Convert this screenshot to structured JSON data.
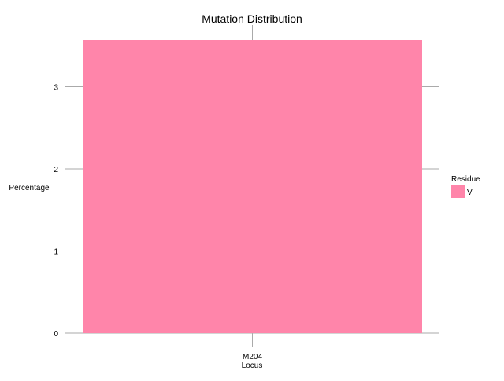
{
  "chart_data": {
    "type": "bar",
    "title": "Mutation Distribution",
    "xlabel": "Locus",
    "ylabel": "Percentage",
    "categories": [
      "M204"
    ],
    "series": [
      {
        "name": "V",
        "values": [
          3.57
        ],
        "color": "#FF85AA"
      }
    ],
    "ylim": [
      0,
      3.57
    ],
    "yticks": [
      0,
      1,
      2,
      3
    ],
    "grid": false,
    "legend": {
      "title": "Residue",
      "placement": "right"
    },
    "colors": {
      "axis": "#AAAAAA",
      "text": "#000000",
      "bar": "#FF85AA"
    }
  }
}
